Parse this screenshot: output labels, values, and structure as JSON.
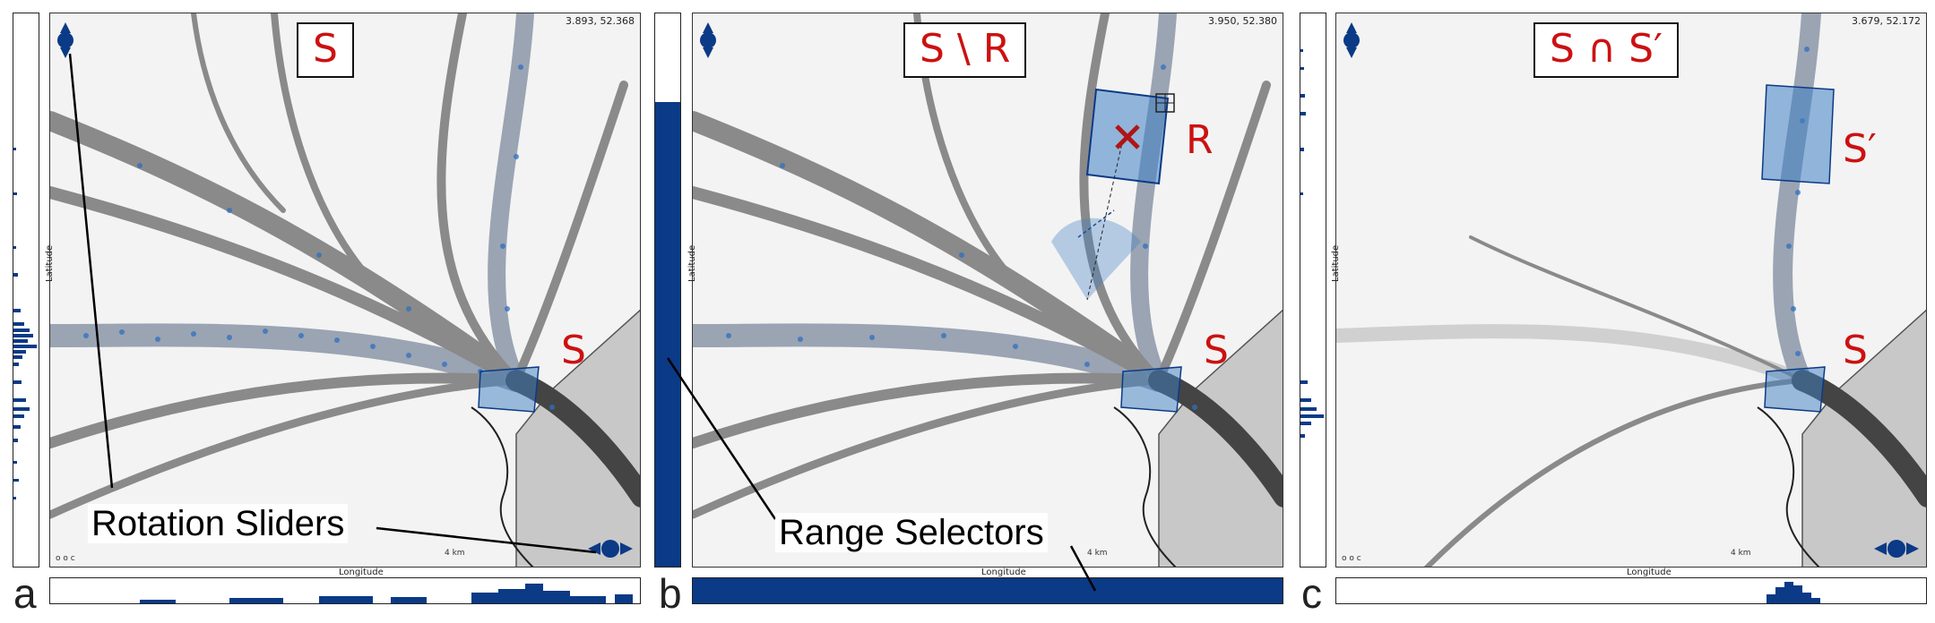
{
  "panels": [
    {
      "letter": "a",
      "title": "S",
      "coord": "3.893, 52.368",
      "region_labels": [
        {
          "text": "S"
        }
      ],
      "x_axis_label": "Longitude",
      "y_axis_label": "Latitude",
      "ooc": "o o c",
      "scale": "4 km",
      "vhist_full": false,
      "hhist_full": false
    },
    {
      "letter": "b",
      "title": "S \\ R",
      "coord": "3.950, 52.380",
      "region_labels": [
        {
          "text": "R"
        },
        {
          "text": "S"
        }
      ],
      "x_axis_label": "Longitude",
      "y_axis_label": "Latitude",
      "scale": "4 km",
      "vhist_full": true,
      "vhist_fill_fraction": 0.84,
      "hhist_full": true,
      "hhist_fill_fraction": 1.0
    },
    {
      "letter": "c",
      "title": "S ∩ S′",
      "coord": "3.679, 52.172",
      "region_labels": [
        {
          "text": "S′"
        },
        {
          "text": "S"
        }
      ],
      "x_axis_label": "Longitude",
      "y_axis_label": "Latitude",
      "ooc": "o o c",
      "scale": "4 km",
      "vhist_full": false,
      "hhist_full": false
    }
  ],
  "annotations": {
    "rotation_sliders": "Rotation Sliders",
    "range_selectors": "Range Selectors"
  },
  "colors": {
    "accent_blue": "#0b3a86",
    "region_blue": "#3f7fc4",
    "title_red": "#cc1111",
    "land_grey": "#c8c8c8"
  },
  "icons": [
    "rotation-slider-icon",
    "brush-region-icon",
    "delete-cross-icon",
    "resize-handle-icon"
  ]
}
